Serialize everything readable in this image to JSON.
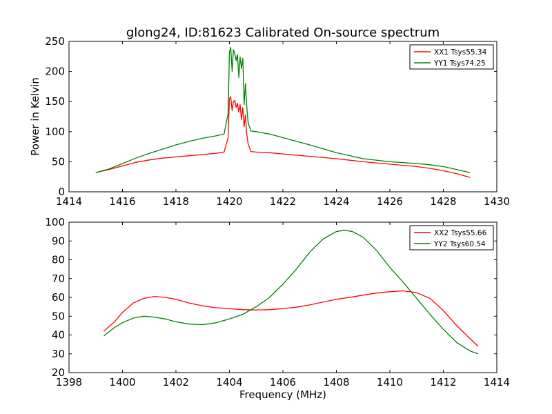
{
  "chart_data": [
    {
      "type": "line",
      "title": "glong24, ID:81623 Calibrated On-source spectrum",
      "xlabel": "",
      "ylabel": "Power in Kelvin",
      "xlim": [
        1414,
        1430
      ],
      "ylim": [
        0,
        250
      ],
      "xticks": [
        1414,
        1416,
        1418,
        1420,
        1422,
        1424,
        1426,
        1428,
        1430
      ],
      "yticks": [
        0,
        50,
        100,
        150,
        200,
        250
      ],
      "legend_position": "top-right",
      "series": [
        {
          "name": "XX1 Tsys55.34",
          "color": "#ff0000",
          "x": [
            1415.0,
            1415.5,
            1416.0,
            1416.5,
            1417.0,
            1417.5,
            1418.0,
            1418.5,
            1419.0,
            1419.5,
            1419.8,
            1419.95,
            1420.0,
            1420.05,
            1420.1,
            1420.15,
            1420.2,
            1420.25,
            1420.3,
            1420.35,
            1420.4,
            1420.45,
            1420.5,
            1420.55,
            1420.6,
            1420.65,
            1420.7,
            1420.8,
            1421.0,
            1421.5,
            1422.0,
            1422.5,
            1423.0,
            1424.0,
            1425.0,
            1426.0,
            1427.0,
            1427.5,
            1428.0,
            1428.5,
            1429.0
          ],
          "y": [
            32,
            37,
            43,
            49,
            53,
            56,
            58,
            60,
            62,
            64,
            66,
            90,
            155,
            158,
            135,
            150,
            152,
            140,
            147,
            132,
            145,
            120,
            140,
            108,
            128,
            95,
            80,
            67,
            66,
            65,
            63,
            61,
            59,
            55,
            50,
            46,
            42,
            39,
            35,
            30,
            24
          ]
        },
        {
          "name": "YY1 Tsys74.25",
          "color": "#008000",
          "x": [
            1415.0,
            1415.5,
            1416.0,
            1416.5,
            1417.0,
            1417.5,
            1418.0,
            1418.5,
            1419.0,
            1419.5,
            1419.8,
            1419.95,
            1420.0,
            1420.05,
            1420.1,
            1420.15,
            1420.2,
            1420.25,
            1420.3,
            1420.35,
            1420.4,
            1420.45,
            1420.5,
            1420.55,
            1420.6,
            1420.65,
            1420.7,
            1420.8,
            1421.0,
            1421.5,
            1422.0,
            1422.5,
            1423.0,
            1424.0,
            1425.0,
            1426.0,
            1427.0,
            1427.5,
            1428.0,
            1428.5,
            1429.0
          ],
          "y": [
            32,
            38,
            47,
            56,
            64,
            71,
            78,
            84,
            89,
            93,
            96,
            130,
            232,
            240,
            200,
            236,
            230,
            218,
            228,
            190,
            224,
            205,
            222,
            145,
            180,
            140,
            115,
            101,
            100,
            96,
            90,
            84,
            78,
            65,
            55,
            50,
            47,
            45,
            42,
            37,
            32
          ]
        }
      ]
    },
    {
      "type": "line",
      "title": "",
      "xlabel": "Frequency (MHz)",
      "ylabel": "",
      "xlim": [
        1398,
        1414
      ],
      "ylim": [
        20,
        100
      ],
      "xticks": [
        1398,
        1400,
        1402,
        1404,
        1406,
        1408,
        1410,
        1412,
        1414
      ],
      "yticks": [
        20,
        30,
        40,
        50,
        60,
        70,
        80,
        90,
        100
      ],
      "legend_position": "top-right",
      "series": [
        {
          "name": "XX2 Tsys55.66",
          "color": "#ff0000",
          "x": [
            1399.3,
            1399.7,
            1400.0,
            1400.4,
            1400.8,
            1401.2,
            1401.6,
            1402.0,
            1402.5,
            1403.0,
            1403.5,
            1404.0,
            1404.5,
            1405.0,
            1405.5,
            1406.0,
            1406.5,
            1407.0,
            1407.5,
            1408.0,
            1408.5,
            1409.0,
            1409.5,
            1410.0,
            1410.5,
            1411.0,
            1411.5,
            1412.0,
            1412.5,
            1413.0,
            1413.3
          ],
          "y": [
            42,
            47,
            52,
            57,
            59.5,
            60.5,
            60,
            59,
            57,
            55.5,
            54.5,
            54,
            53.5,
            53.3,
            53.5,
            54,
            54.8,
            56,
            57.5,
            59,
            60,
            61.2,
            62.3,
            63,
            63.5,
            62.5,
            59.5,
            53,
            45,
            38,
            34
          ]
        },
        {
          "name": "YY2 Tsys60.54",
          "color": "#008000",
          "x": [
            1399.3,
            1399.7,
            1400.0,
            1400.4,
            1400.8,
            1401.2,
            1401.6,
            1402.0,
            1402.5,
            1403.0,
            1403.5,
            1404.0,
            1404.5,
            1405.0,
            1405.5,
            1406.0,
            1406.5,
            1407.0,
            1407.5,
            1408.0,
            1408.3,
            1408.6,
            1409.0,
            1409.5,
            1410.0,
            1410.5,
            1411.0,
            1411.5,
            1412.0,
            1412.5,
            1413.0,
            1413.3
          ],
          "y": [
            39.5,
            44,
            46.5,
            49,
            50,
            49.5,
            48.5,
            47,
            45.8,
            45.5,
            46.5,
            48.5,
            51,
            55,
            60,
            67,
            75,
            84,
            91,
            95,
            95.7,
            95,
            92,
            85,
            76,
            68,
            59.5,
            51,
            43,
            36,
            31.5,
            30
          ]
        }
      ]
    }
  ]
}
